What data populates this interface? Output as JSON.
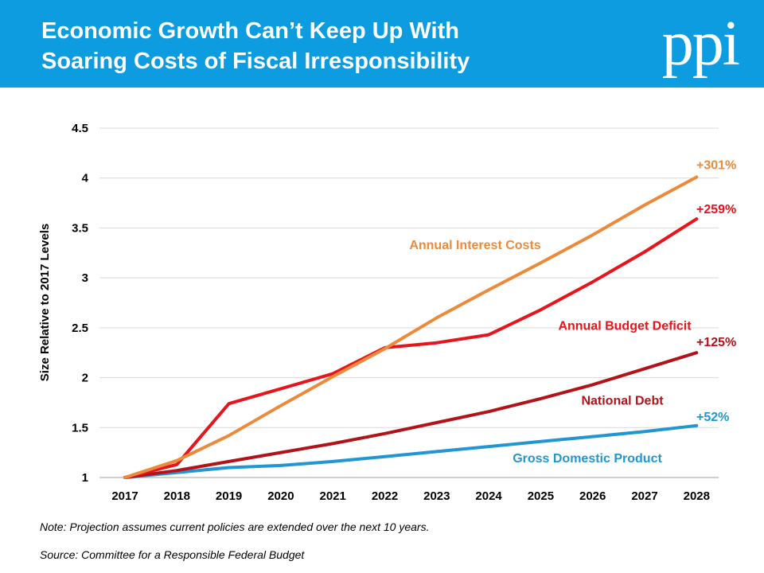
{
  "header": {
    "title_line1": "Economic Growth Can’t Keep Up With",
    "title_line2": "Soaring Costs of Fiscal Irresponsibility",
    "logo_text": "ppi",
    "background_color": "#0d9ce0"
  },
  "chart_data": {
    "type": "line",
    "title": "Economic Growth Can’t Keep Up With Soaring Costs of Fiscal Irresponsibility",
    "xlabel": "",
    "ylabel": "Size Relative to 2017 Levels",
    "ylim": [
      1,
      4.5
    ],
    "yticks": [
      "1",
      "1.5",
      "2",
      "2.5",
      "3",
      "3.5",
      "4",
      "4.5"
    ],
    "grid": true,
    "x": [
      "2017",
      "2018",
      "2019",
      "2020",
      "2021",
      "2022",
      "2023",
      "2024",
      "2025",
      "2026",
      "2027",
      "2028"
    ],
    "series": [
      {
        "name": "Annual Interest Costs",
        "color": "#ec8a3c",
        "end_label": "+301%",
        "values": [
          1.0,
          1.17,
          1.42,
          1.72,
          2.01,
          2.29,
          2.6,
          2.88,
          3.15,
          3.43,
          3.73,
          4.01
        ]
      },
      {
        "name": "Annual Budget Deficit",
        "color": "#e8141c",
        "end_label": "+259%",
        "values": [
          1.0,
          1.13,
          1.74,
          1.89,
          2.04,
          2.3,
          2.35,
          2.43,
          2.68,
          2.96,
          3.26,
          3.59
        ]
      },
      {
        "name": "National Debt",
        "color": "#b31318",
        "end_label": "+125%",
        "values": [
          1.0,
          1.07,
          1.16,
          1.25,
          1.34,
          1.44,
          1.55,
          1.66,
          1.79,
          1.93,
          2.09,
          2.25
        ]
      },
      {
        "name": "Gross Domestic Product",
        "color": "#2196d3",
        "end_label": "+52%",
        "values": [
          1.0,
          1.05,
          1.1,
          1.12,
          1.16,
          1.21,
          1.26,
          1.31,
          1.36,
          1.41,
          1.46,
          1.52
        ]
      }
    ]
  },
  "footer": {
    "note": "Note: Projection assumes current policies are extended over the next 10 years.",
    "source": "Source: Committee for a Responsible Federal Budget"
  }
}
